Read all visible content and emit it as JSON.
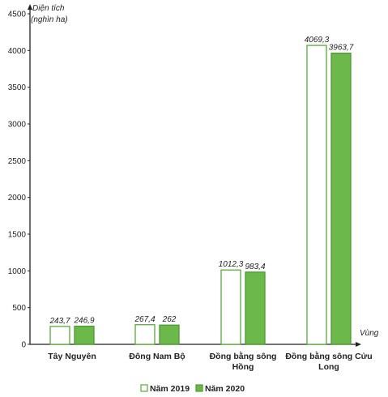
{
  "chart_data": {
    "type": "bar",
    "ylabel_line1": "Diện tích",
    "ylabel_line2": "(nghìn ha)",
    "xlabel": "Vùng",
    "ylim": [
      0,
      4500
    ],
    "yticks": [
      0,
      500,
      1000,
      1500,
      2000,
      2500,
      3000,
      3500,
      4000,
      4500
    ],
    "categories": [
      [
        "Tây Nguyên"
      ],
      [
        "Đông Nam Bộ"
      ],
      [
        "Đồng bằng sông",
        "Hồng"
      ],
      [
        "Đồng bằng sông Cửu",
        "Long"
      ]
    ],
    "series": [
      {
        "name": "Năm 2019",
        "values": [
          243.7,
          267.4,
          1012.3,
          4069.3
        ],
        "labels": [
          "243,7",
          "267,4",
          "1012,3",
          "4069,3"
        ],
        "fill": "#ffffff",
        "stroke": "#5aa83e"
      },
      {
        "name": "Năm 2020",
        "values": [
          246.9,
          262,
          983.4,
          3963.7
        ],
        "labels": [
          "246,9",
          "262",
          "983,4",
          "3963,7"
        ],
        "fill": "#6cb84a",
        "stroke": "#4f9a33"
      }
    ],
    "legend_position": "bottom",
    "grid": false
  }
}
